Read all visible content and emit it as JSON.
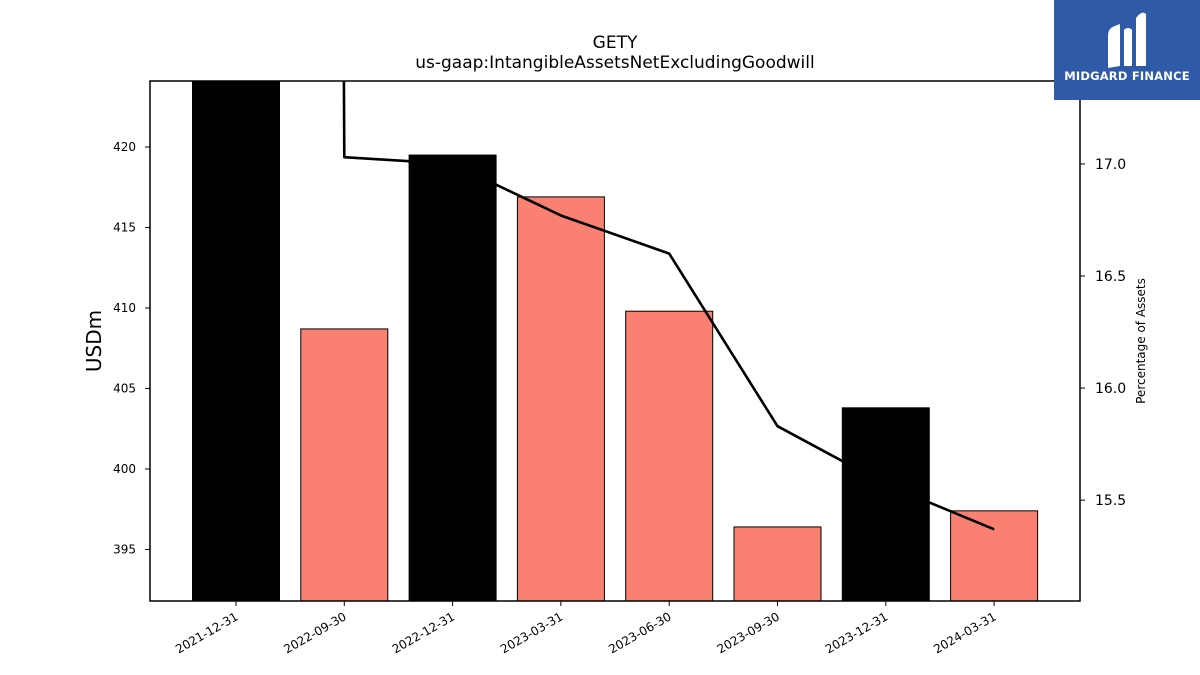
{
  "chart_data": {
    "type": "bar",
    "title": "GETY",
    "subtitle": "us-gaap:IntangibleAssetsNetExcludingGoodwill",
    "ylabel": "USDm",
    "y2label": "Percentage of Assets",
    "categories": [
      "2021-12-31",
      "2022-09-30",
      "2022-12-31",
      "2023-03-31",
      "2023-06-30",
      "2023-09-30",
      "2023-12-31",
      "2024-03-31"
    ],
    "series": [
      {
        "type": "bar",
        "axis": "left",
        "values": [
          424.5,
          408.7,
          419.5,
          416.9,
          409.8,
          396.4,
          403.8,
          397.4
        ],
        "colors": [
          "#000000",
          "#fa8072",
          "#000000",
          "#fa8072",
          "#fa8072",
          "#fa8072",
          "#000000",
          "#fa8072"
        ]
      },
      {
        "type": "line",
        "axis": "right",
        "color": "#000000",
        "values": [
          17.9,
          17.03,
          17.0,
          16.77,
          16.6,
          15.83,
          15.57,
          15.37
        ]
      }
    ],
    "ylim": [
      391.8,
      424.1
    ],
    "yticks": [
      395,
      400,
      405,
      410,
      415,
      420
    ],
    "y2lim": [
      15.05,
      17.37
    ],
    "y2ticks": [
      "15.5",
      "16.0",
      "16.5",
      "17.0"
    ],
    "grid": false
  },
  "logo": {
    "text": "MIDGARD FINANCE",
    "bg_color": "#2f5aa8"
  }
}
